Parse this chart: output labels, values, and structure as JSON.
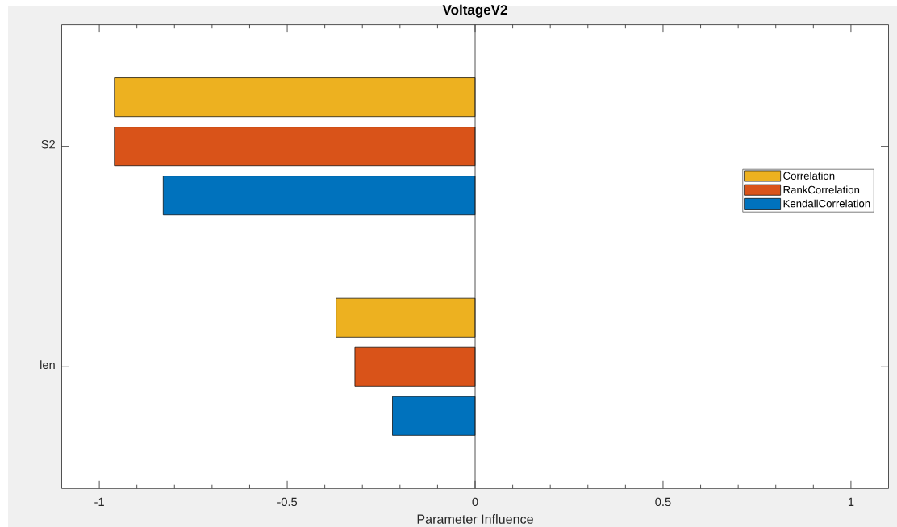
{
  "chart_data": {
    "type": "bar",
    "orientation": "horizontal",
    "title": "VoltageV2",
    "xlabel": "Parameter Influence",
    "categories": [
      "S2",
      "len"
    ],
    "series": [
      {
        "name": "Correlation",
        "color": "#edb120",
        "values": [
          -0.96,
          -0.37
        ]
      },
      {
        "name": "RankCorrelation",
        "color": "#d95319",
        "values": [
          -0.96,
          -0.32
        ]
      },
      {
        "name": "KendallCorrelation",
        "color": "#0072bd",
        "values": [
          -0.83,
          -0.22
        ]
      }
    ],
    "xlim": [
      -1.1,
      1.1
    ],
    "xticks": [
      -1,
      {
        "value": -0.9,
        "label": null
      },
      {
        "value": -0.8,
        "label": null
      },
      {
        "value": -0.7,
        "label": null
      },
      {
        "value": -0.6,
        "label": null
      },
      -0.5,
      {
        "value": -0.4,
        "label": null
      },
      {
        "value": -0.3,
        "label": null
      },
      {
        "value": -0.2,
        "label": null
      },
      {
        "value": -0.1,
        "label": null
      },
      0,
      {
        "value": 0.1,
        "label": null
      },
      {
        "value": 0.2,
        "label": null
      },
      {
        "value": 0.3,
        "label": null
      },
      {
        "value": 0.4,
        "label": null
      },
      0.5,
      {
        "value": 0.6,
        "label": null
      },
      {
        "value": 0.7,
        "label": null
      },
      {
        "value": 0.8,
        "label": null
      },
      {
        "value": 0.9,
        "label": null
      },
      1
    ],
    "legend": "right",
    "ref_lines": [
      {
        "axis": "x",
        "value": 0,
        "color": "#262626"
      }
    ]
  }
}
